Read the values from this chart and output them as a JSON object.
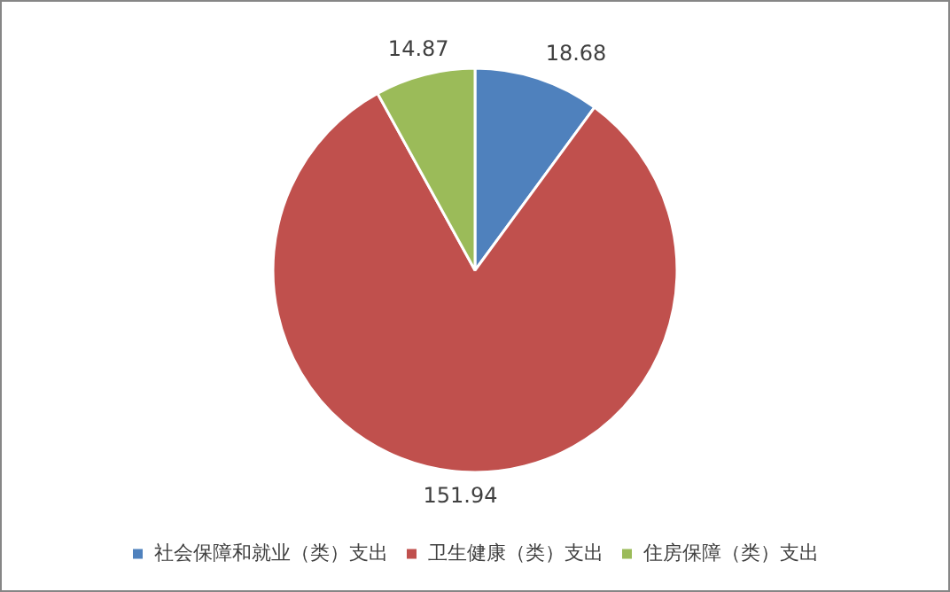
{
  "chart_data": {
    "type": "pie",
    "categories": [
      "社会保障和就业（类）支出",
      "卫生健康（类）支出",
      "住房保障（类）支出"
    ],
    "values": [
      18.68,
      151.94,
      14.87
    ],
    "colors": [
      "#4f81bd",
      "#c0504d",
      "#9bbb59"
    ],
    "data_labels": true,
    "legend": "bottom"
  }
}
